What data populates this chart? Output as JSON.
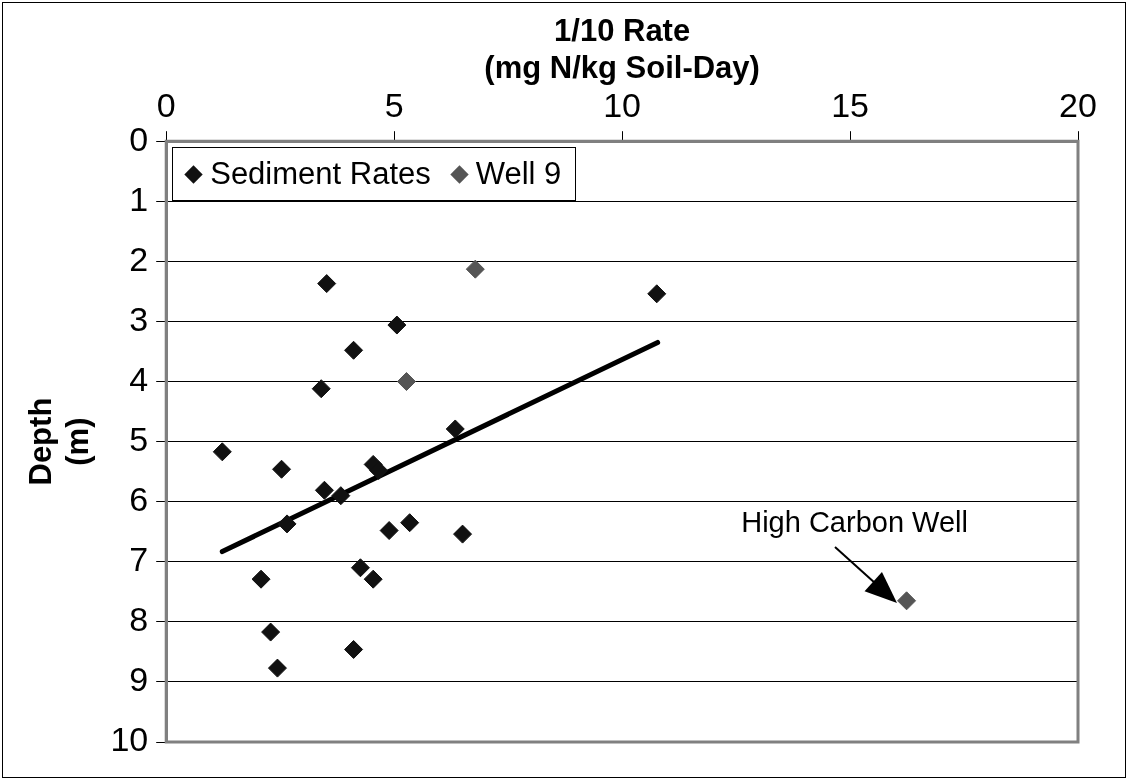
{
  "chart_data": {
    "type": "scatter",
    "xlabel": "1/10 Rate\n(mg N/kg Soil-Day)",
    "ylabel": "Depth\n(m)",
    "xlim": [
      0,
      20
    ],
    "xticks": [
      0,
      5,
      10,
      15,
      20
    ],
    "ylim": [
      10,
      0
    ],
    "yticks": [
      0,
      1,
      2,
      3,
      4,
      5,
      6,
      7,
      8,
      9,
      10
    ],
    "grid": "y",
    "legend": "top left",
    "series": [
      {
        "name": "Sediment Rates",
        "marker": "diamond",
        "color": "#111111",
        "x": [
          3.52,
          5.06,
          4.11,
          3.4,
          1.23,
          2.53,
          3.47,
          3.83,
          4.54,
          4.66,
          2.65,
          4.89,
          5.34,
          6.5,
          6.34,
          2.08,
          4.26,
          4.54,
          2.29,
          4.11,
          2.44,
          10.76
        ],
        "values": [
          2.37,
          3.06,
          3.48,
          4.12,
          5.17,
          5.46,
          5.81,
          5.9,
          5.38,
          5.48,
          6.37,
          6.48,
          6.35,
          6.54,
          4.79,
          7.29,
          7.1,
          7.29,
          8.17,
          8.46,
          8.77,
          2.54
        ]
      },
      {
        "name": "Well 9",
        "marker": "diamond",
        "color": "#555555",
        "x": [
          6.78,
          5.27,
          16.24
        ],
        "values": [
          2.13,
          4.0,
          7.65
        ]
      },
      {
        "type": "line",
        "marker": "none",
        "color": "#000000",
        "x": [
          1.23,
          10.78
        ],
        "values": [
          6.83,
          3.35
        ]
      }
    ],
    "annotations": [
      {
        "text": "High Carbon Well",
        "x": 16.24,
        "y": 7.65
      }
    ]
  }
}
